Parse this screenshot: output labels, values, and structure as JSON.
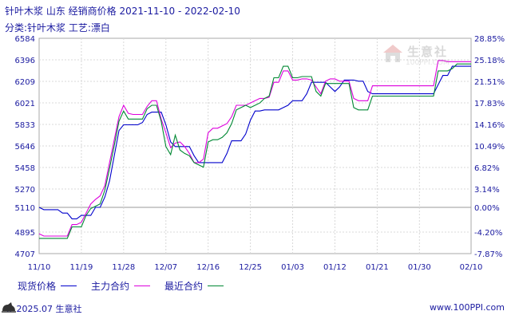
{
  "header": {
    "title": "针叶木浆 山东 经销商价格 2021-11-10 - 2022-02-10",
    "subtitle": "分类:针叶木浆 工艺:漂白"
  },
  "watermark": {
    "cn": "生意社",
    "en": "100PPI.COM"
  },
  "footer": {
    "left": "© 2025.07 生意社",
    "right": "www.100PPI.com"
  },
  "colors": {
    "spot": "#0000cc",
    "main": "#dd00dd",
    "latest": "#008833",
    "text": "#1a1aa0",
    "grid": "#cccccc"
  },
  "chart_data": {
    "type": "line",
    "title": "针叶木浆 山东 经销商价格 2021-11-10 - 2022-02-10",
    "x_tick_labels": [
      "11/10",
      "11/19",
      "11/28",
      "12/07",
      "12/16",
      "12/25",
      "01/03",
      "01/12",
      "01/21",
      "01/30",
      "02/10"
    ],
    "y_ticks_left": [
      "6584",
      "6396",
      "6209",
      "6021",
      "5833",
      "5646",
      "5458",
      "5270",
      "5110",
      "4895",
      "4707"
    ],
    "y_ticks_right": [
      "28.85%",
      "25.18%",
      "21.51%",
      "17.83%",
      "14.16%",
      "10.49%",
      "6.82%",
      "3.14%",
      "0.00%",
      "-4.20%",
      "-7.87%"
    ],
    "ylim": [
      4707,
      6584
    ],
    "baseline": 5110,
    "grid": true,
    "legend_position": "bottom",
    "series": [
      {
        "name": "现货价格",
        "color": "#0000cc",
        "x": [
          0,
          1,
          2,
          4,
          5,
          6,
          7,
          8,
          9,
          10,
          11,
          12,
          13,
          14,
          15,
          16,
          17,
          18,
          19,
          20,
          21,
          22,
          23,
          24,
          25,
          26,
          27,
          28,
          29,
          30,
          31,
          32,
          33,
          34,
          35,
          36,
          37,
          38,
          39,
          40,
          41,
          42,
          43,
          44,
          45,
          46,
          47,
          48,
          49,
          50,
          51,
          52,
          53,
          54,
          55,
          56,
          57,
          58,
          59,
          60,
          61,
          62,
          63,
          64,
          65,
          66,
          67,
          68,
          69,
          70,
          71,
          72,
          73,
          74,
          75,
          76,
          77,
          78,
          79,
          80,
          81,
          82,
          83,
          84,
          85,
          86,
          87,
          88,
          89,
          90,
          91,
          92
        ],
        "y": [
          5110,
          5090,
          5090,
          5090,
          5060,
          5060,
          5010,
          5010,
          5040,
          5040,
          5040,
          5110,
          5110,
          5200,
          5340,
          5560,
          5780,
          5830,
          5830,
          5830,
          5830,
          5850,
          5920,
          5940,
          5940,
          5940,
          5830,
          5680,
          5640,
          5640,
          5640,
          5640,
          5560,
          5500,
          5500,
          5500,
          5500,
          5500,
          5500,
          5580,
          5690,
          5690,
          5690,
          5750,
          5870,
          5950,
          5950,
          5960,
          5960,
          5960,
          5960,
          5980,
          6000,
          6040,
          6040,
          6040,
          6100,
          6200,
          6200,
          6200,
          6200,
          6160,
          6120,
          6160,
          6220,
          6220,
          6220,
          6210,
          6210,
          6120,
          6100,
          6100,
          6100,
          6100,
          6100,
          6100,
          6100,
          6100,
          6100,
          6100,
          6100,
          6100,
          6100,
          6100,
          6180,
          6260,
          6260,
          6340,
          6340,
          6340,
          6340,
          6340
        ]
      },
      {
        "name": "主力合约",
        "color": "#dd00dd",
        "x": [
          0,
          1,
          2,
          4,
          5,
          6,
          7,
          8,
          9,
          10,
          11,
          12,
          13,
          14,
          15,
          16,
          17,
          18,
          19,
          20,
          21,
          22,
          23,
          24,
          25,
          26,
          27,
          28,
          29,
          30,
          31,
          32,
          33,
          34,
          35,
          36,
          37,
          38,
          39,
          40,
          41,
          42,
          43,
          44,
          45,
          46,
          47,
          48,
          49,
          50,
          51,
          52,
          53,
          54,
          55,
          56,
          57,
          58,
          59,
          60,
          61,
          62,
          63,
          64,
          65,
          66,
          67,
          68,
          69,
          70,
          71,
          72,
          73,
          74,
          75,
          76,
          77,
          78,
          79,
          80,
          81,
          82,
          83,
          84,
          85,
          86,
          87,
          88,
          89,
          90,
          91,
          92
        ],
        "y": [
          4880,
          4860,
          4860,
          4860,
          4860,
          4860,
          4960,
          4960,
          4980,
          5060,
          5140,
          5180,
          5210,
          5300,
          5500,
          5700,
          5900,
          6000,
          5930,
          5920,
          5920,
          5920,
          5990,
          6040,
          6040,
          5880,
          5760,
          5630,
          5670,
          5680,
          5640,
          5580,
          5500,
          5500,
          5530,
          5760,
          5800,
          5800,
          5820,
          5840,
          5900,
          6000,
          6000,
          6000,
          6020,
          6040,
          6060,
          6060,
          6070,
          6200,
          6200,
          6300,
          6300,
          6220,
          6220,
          6230,
          6230,
          6220,
          6160,
          6100,
          6210,
          6230,
          6230,
          6210,
          6210,
          6210,
          6060,
          6040,
          6040,
          6040,
          6170,
          6170,
          6170,
          6170,
          6170,
          6170,
          6170,
          6170,
          6170,
          6170,
          6170,
          6170,
          6170,
          6170,
          6390,
          6390,
          6380,
          6380,
          6380,
          6380,
          6380,
          6380
        ]
      },
      {
        "name": "最近合约",
        "color": "#008833",
        "x": [
          0,
          1,
          2,
          4,
          5,
          6,
          7,
          8,
          9,
          10,
          11,
          12,
          13,
          14,
          15,
          16,
          17,
          18,
          19,
          20,
          21,
          22,
          23,
          24,
          25,
          26,
          27,
          28,
          29,
          30,
          31,
          32,
          33,
          34,
          35,
          36,
          37,
          38,
          39,
          40,
          41,
          42,
          43,
          44,
          45,
          46,
          47,
          48,
          49,
          50,
          51,
          52,
          53,
          54,
          55,
          56,
          57,
          58,
          59,
          60,
          61,
          62,
          63,
          64,
          65,
          66,
          67,
          68,
          69,
          70,
          71,
          72,
          73,
          74,
          75,
          76,
          77,
          78,
          79,
          80,
          81,
          82,
          83,
          84,
          85,
          86,
          87,
          88,
          89,
          90,
          91,
          92
        ],
        "y": [
          4840,
          4840,
          4840,
          4840,
          4840,
          4840,
          4940,
          4940,
          4940,
          5040,
          5100,
          5120,
          5140,
          5260,
          5450,
          5650,
          5860,
          5950,
          5880,
          5880,
          5880,
          5880,
          5970,
          6000,
          6000,
          5860,
          5640,
          5570,
          5740,
          5610,
          5580,
          5560,
          5500,
          5480,
          5460,
          5680,
          5700,
          5700,
          5720,
          5760,
          5840,
          5960,
          5980,
          6000,
          5980,
          6000,
          6020,
          6060,
          6080,
          6240,
          6240,
          6340,
          6340,
          6240,
          6240,
          6250,
          6250,
          6250,
          6120,
          6080,
          6190,
          6190,
          6190,
          6190,
          6190,
          6190,
          5980,
          5960,
          5960,
          5960,
          6080,
          6080,
          6080,
          6080,
          6080,
          6080,
          6080,
          6080,
          6080,
          6080,
          6080,
          6080,
          6080,
          6080,
          6300,
          6300,
          6300,
          6320,
          6360,
          6360,
          6360,
          6360
        ]
      }
    ]
  }
}
